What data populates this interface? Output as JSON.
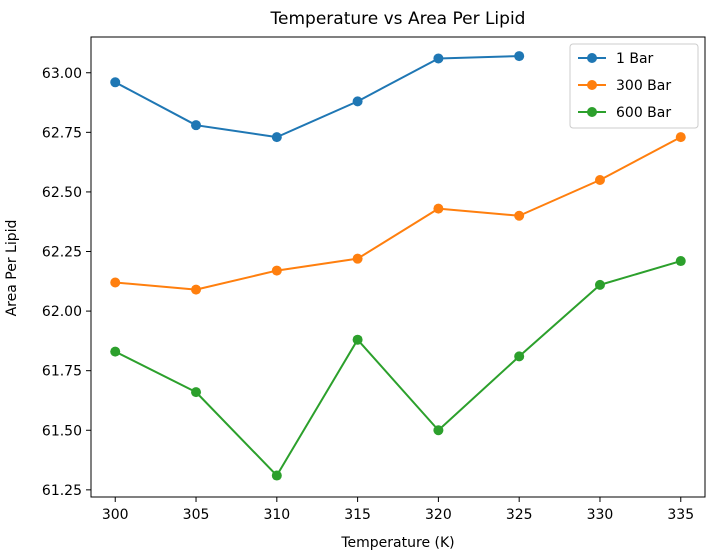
{
  "chart_data": {
    "type": "line",
    "title": "Temperature vs Area Per Lipid",
    "xlabel": "Temperature (K)",
    "ylabel": "Area Per Lipid",
    "x_ticks": [
      300,
      305,
      310,
      315,
      320,
      325,
      330,
      335
    ],
    "y_ticks": [
      61.25,
      61.5,
      61.75,
      62.0,
      62.25,
      62.5,
      62.75,
      63.0
    ],
    "y_tick_labels": [
      "61.25",
      "61.50",
      "61.75",
      "62.00",
      "62.25",
      "62.50",
      "62.75",
      "63.00"
    ],
    "xlim": [
      298.5,
      336.5
    ],
    "ylim": [
      61.22,
      63.15
    ],
    "grid": false,
    "legend_position": "upper right",
    "series": [
      {
        "name": "1 Bar",
        "color": "#1f77b4",
        "x": [
          300,
          305,
          310,
          315,
          320,
          325
        ],
        "values": [
          62.96,
          62.78,
          62.73,
          62.88,
          63.06,
          63.07
        ]
      },
      {
        "name": "300 Bar",
        "color": "#ff7f0e",
        "x": [
          300,
          305,
          310,
          315,
          320,
          325,
          330,
          335
        ],
        "values": [
          62.12,
          62.09,
          62.17,
          62.22,
          62.43,
          62.4,
          62.55,
          62.73
        ]
      },
      {
        "name": "600 Bar",
        "color": "#2ca02c",
        "x": [
          300,
          305,
          310,
          315,
          320,
          325,
          330,
          335
        ],
        "values": [
          61.83,
          61.66,
          61.31,
          61.88,
          61.5,
          61.81,
          62.11,
          62.21
        ]
      }
    ]
  }
}
